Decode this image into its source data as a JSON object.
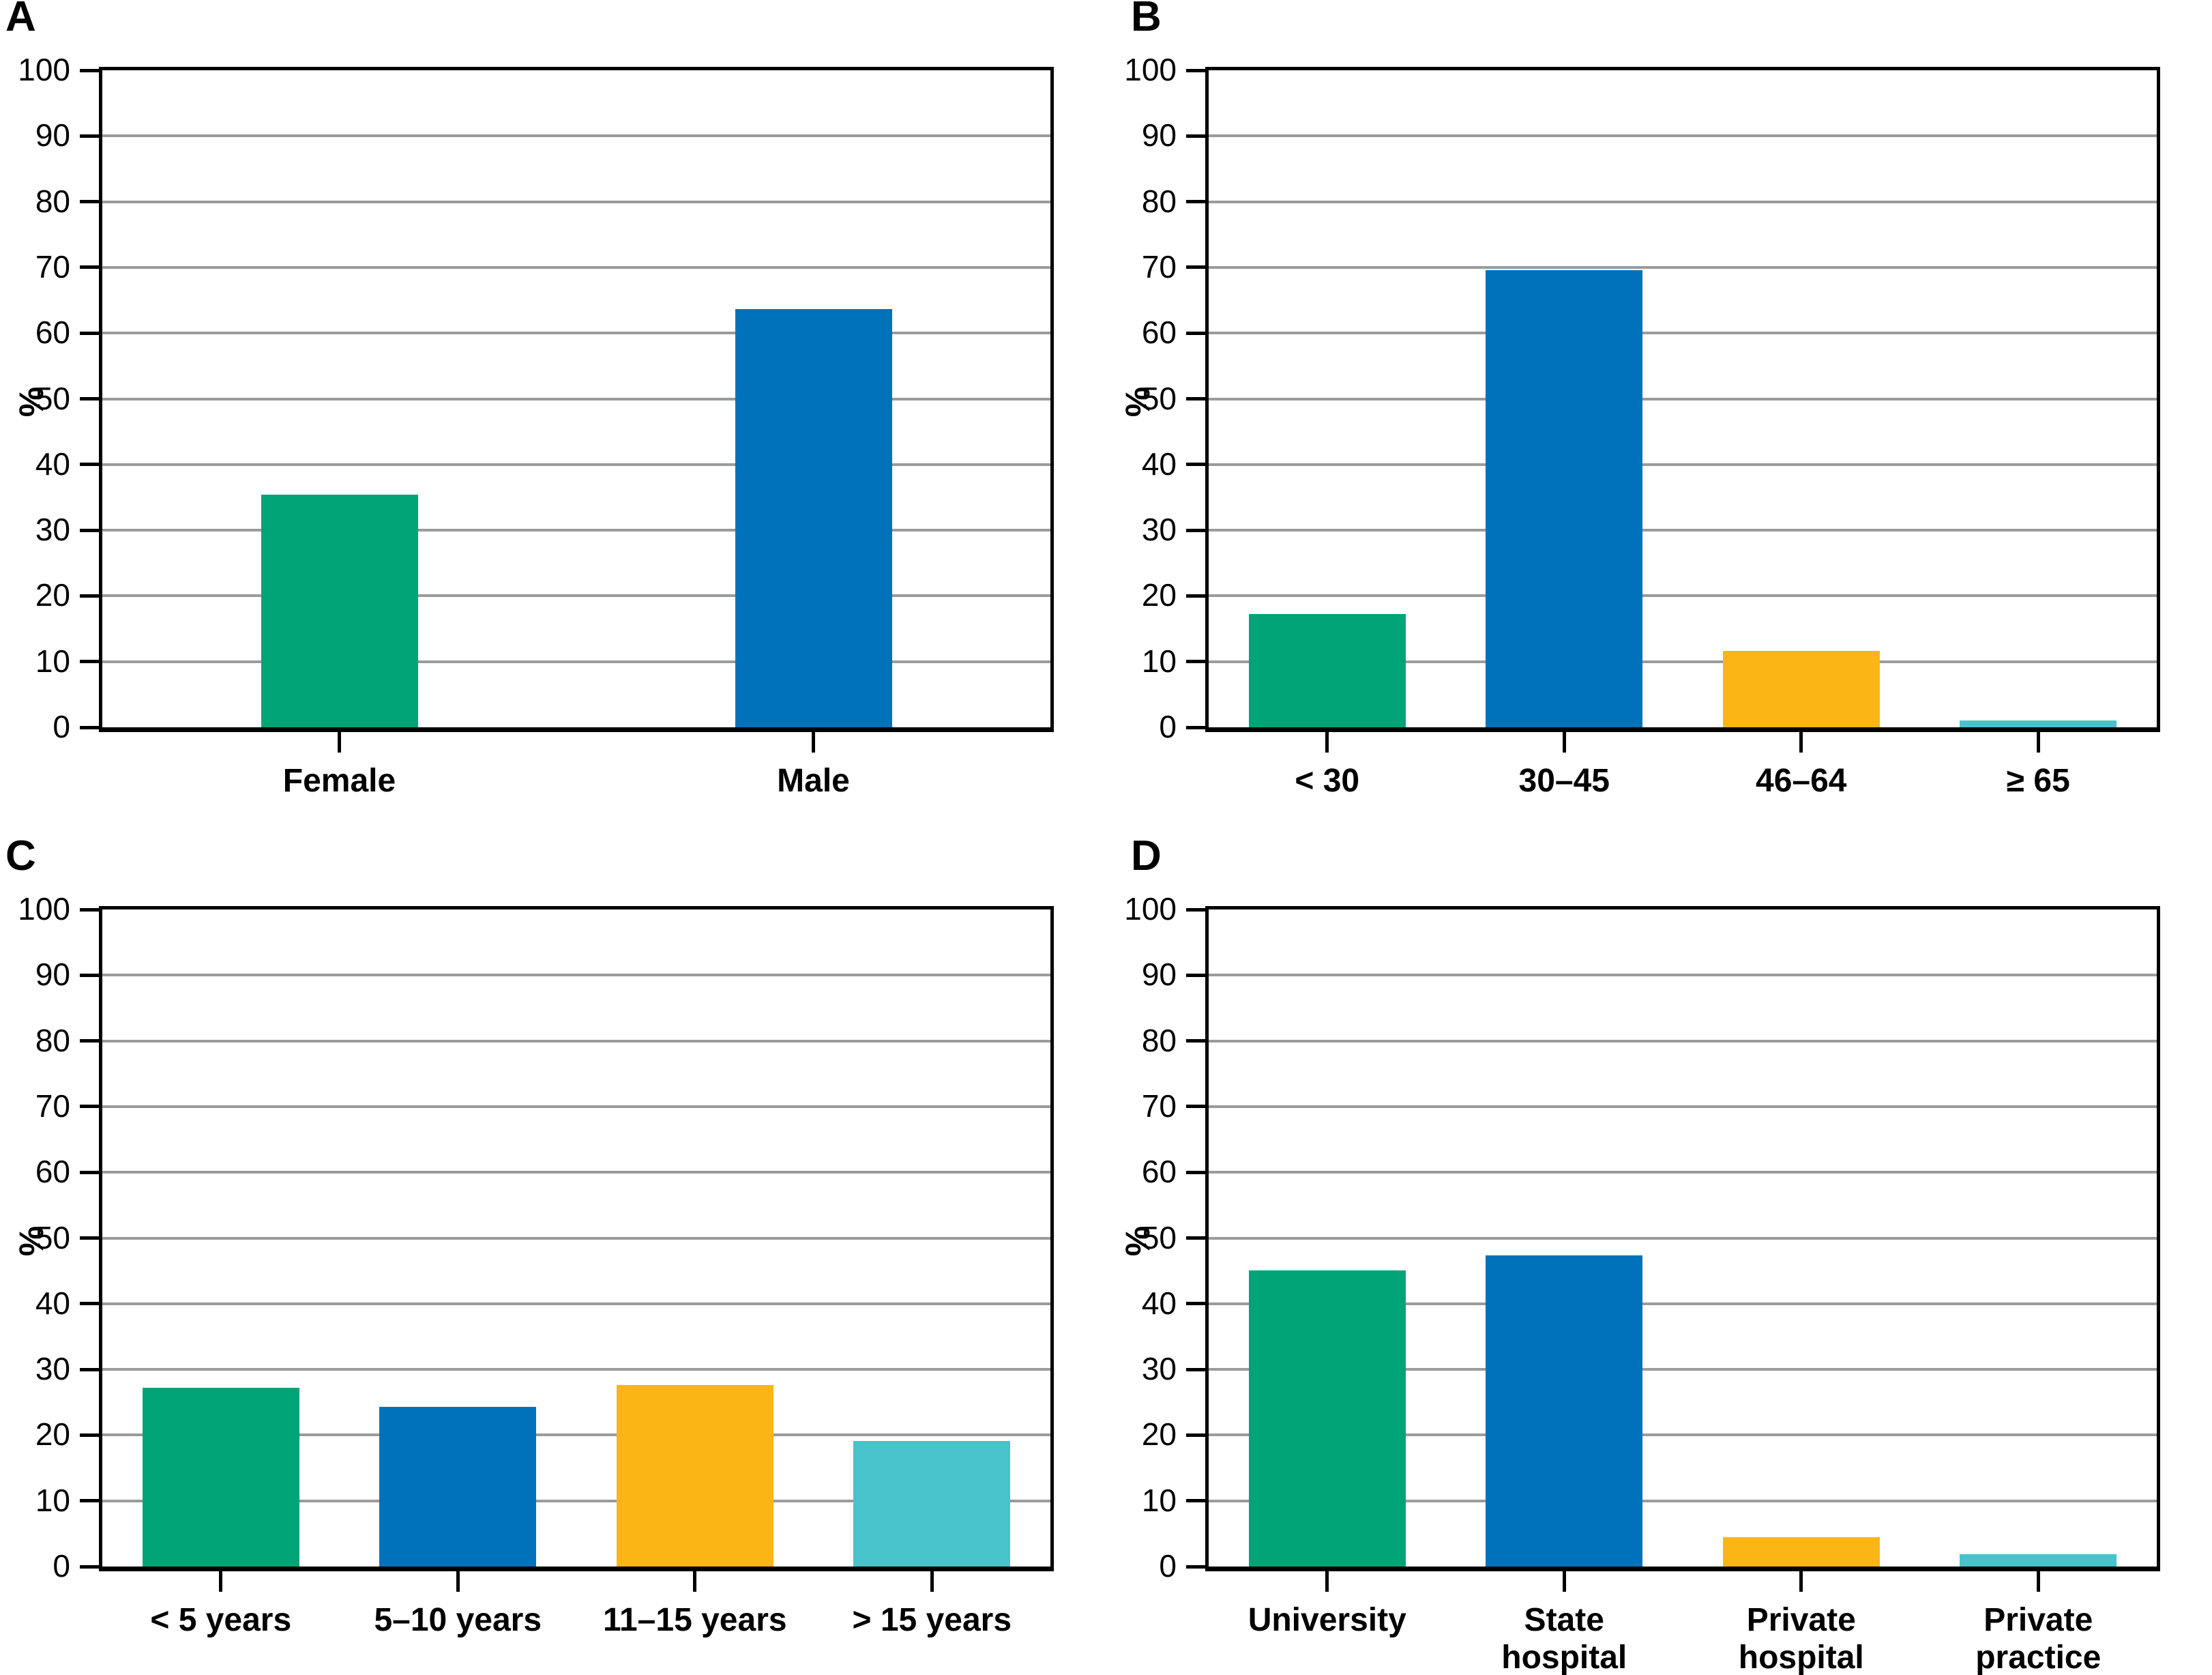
{
  "figure": {
    "background": "#ffffff",
    "panel_letters": [
      "A",
      "B",
      "C",
      "D"
    ]
  },
  "colors": {
    "green": "#00a476",
    "blue": "#0072bc",
    "yellow": "#fbb615",
    "teal": "#48c2cb",
    "gridline": "#9b9b9b",
    "axis": "#000000"
  },
  "chart_data": [
    {
      "type": "bar",
      "panel": "A",
      "title": "",
      "xlabel": "",
      "ylabel": "%",
      "ylim": [
        0,
        100
      ],
      "ytick_step": 10,
      "grid": true,
      "legend": null,
      "categories": [
        "Female",
        "Male"
      ],
      "tick_labels": [
        "Female",
        "Male"
      ],
      "values": [
        35.4,
        63.7
      ],
      "bar_colors": [
        "#00a476",
        "#0072bc"
      ]
    },
    {
      "type": "bar",
      "panel": "B",
      "title": "",
      "xlabel": "",
      "ylabel": "%",
      "ylim": [
        0,
        100
      ],
      "ytick_step": 10,
      "grid": true,
      "legend": null,
      "categories": [
        "< 30",
        "30–45",
        "46–64",
        "≥ 65"
      ],
      "tick_labels": [
        "< 30",
        "30–45",
        "46–64",
        "≥ 65"
      ],
      "values": [
        17.2,
        69.6,
        11.6,
        1.0
      ],
      "bar_colors": [
        "#00a476",
        "#0072bc",
        "#fbb615",
        "#48c2cb"
      ]
    },
    {
      "type": "bar",
      "panel": "C",
      "title": "",
      "xlabel": "",
      "ylabel": "%",
      "ylim": [
        0,
        100
      ],
      "ytick_step": 10,
      "grid": true,
      "legend": null,
      "categories": [
        "< 5 years",
        "5–10 years",
        "11–15 years",
        "> 15 years"
      ],
      "tick_labels": [
        "< 5 years",
        "5–10 years",
        "11–15 years",
        "> 15 years"
      ],
      "values": [
        27.2,
        24.3,
        27.6,
        19.1
      ],
      "bar_colors": [
        "#00a476",
        "#0072bc",
        "#fbb615",
        "#48c2cb"
      ]
    },
    {
      "type": "bar",
      "panel": "D",
      "title": "",
      "xlabel": "",
      "ylabel": "%",
      "ylim": [
        0,
        100
      ],
      "ytick_step": 10,
      "grid": true,
      "legend": null,
      "categories": [
        "University",
        "State hospital",
        "Private hospital",
        "Private practice"
      ],
      "tick_labels": [
        "University",
        "State\nhospital",
        "Private\nhospital",
        "Private\npractice"
      ],
      "values": [
        45.1,
        47.4,
        4.5,
        1.9
      ],
      "bar_colors": [
        "#00a476",
        "#0072bc",
        "#fbb615",
        "#48c2cb"
      ]
    }
  ]
}
